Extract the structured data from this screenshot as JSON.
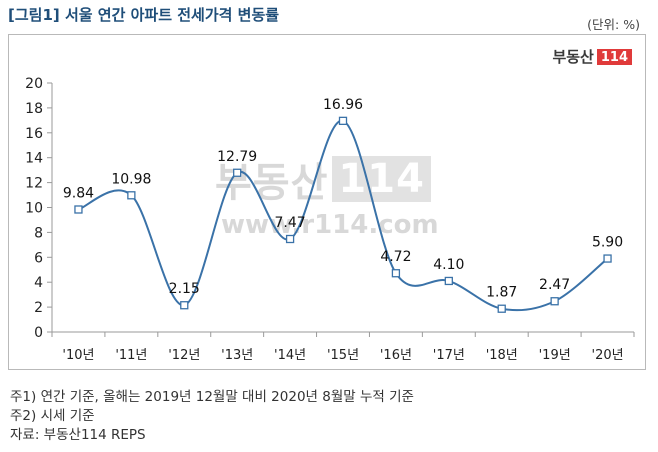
{
  "title": "[그림1] 서울 연간 아파트 전세가격 변동률",
  "unit_label": "(단위: %)",
  "logo": {
    "word": "부동산",
    "number": "114"
  },
  "watermark": {
    "word": "부동산",
    "number": "114",
    "url": "www.r114.com"
  },
  "notes": [
    "주1) 연간 기준, 올해는 2019년 12월말 대비 2020년 8월말 누적 기준",
    "주2) 시세 기준",
    "자료: 부동산114 REPS"
  ],
  "colors": {
    "line": "#3a72a8",
    "title": "#1f4e79",
    "marker_fill": "#ffffff",
    "logo_accent": "#e03a3a"
  },
  "chart_data": {
    "type": "line",
    "categories": [
      "'10년",
      "'11년",
      "'12년",
      "'13년",
      "'14년",
      "'15년",
      "'16년",
      "'17년",
      "'18년",
      "'19년",
      "'20년"
    ],
    "series": [
      {
        "values": [
          9.84,
          10.98,
          2.15,
          12.79,
          7.47,
          16.96,
          4.72,
          4.1,
          1.87,
          2.47,
          5.9
        ]
      }
    ],
    "data_labels": [
      "9.84",
      "10.98",
      "2.15",
      "12.79",
      "7.47",
      "16.96",
      "4.72",
      "4.10",
      "1.87",
      "2.47",
      "5.90"
    ],
    "yticks": [
      "0",
      "2",
      "4",
      "6",
      "8",
      "10",
      "12",
      "14",
      "16",
      "18",
      "20"
    ],
    "ylim": [
      0,
      20
    ],
    "grid": false,
    "smooth": true,
    "legend": "none"
  }
}
